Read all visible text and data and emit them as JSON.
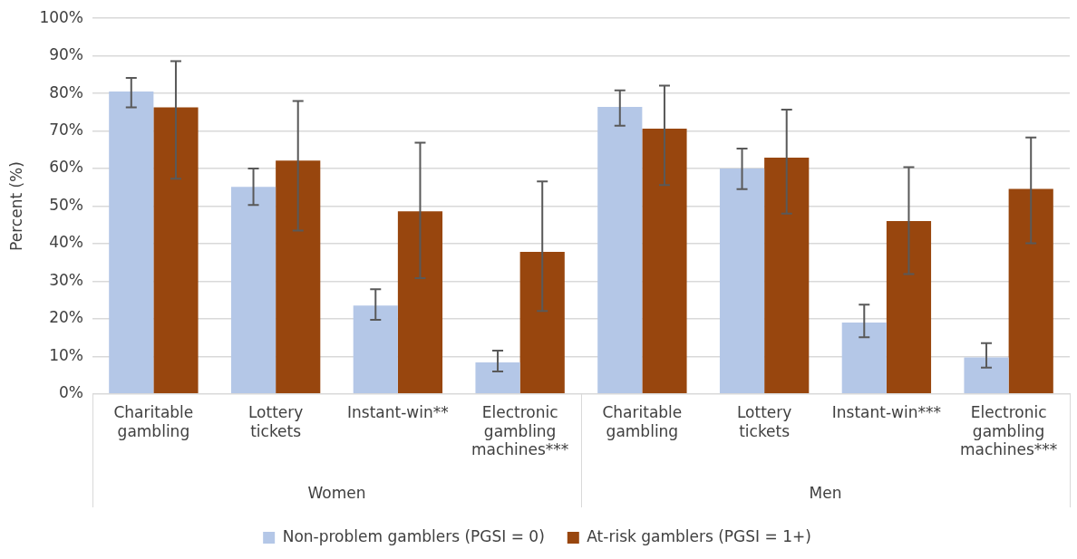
{
  "chart_data": {
    "type": "bar",
    "ylabel": "Percent (%)",
    "categories": [
      "Charitable gambling",
      "Lottery tickets",
      "Instant-win**",
      "Electronic gambling machines***",
      "Charitable gambling",
      "Lottery tickets",
      "Instant-win***",
      "Electronic gambling machines***"
    ],
    "series": [
      {
        "name": "Non-problem gamblers (PGSI = 0)",
        "color": "#b4c7e7",
        "values": [
          80.5,
          55.1,
          23.5,
          8.4,
          76.4,
          60.0,
          19.0,
          9.7
        ],
        "errors": [
          [
            76.3,
            84.1
          ],
          [
            50.3,
            60.0
          ],
          [
            19.7,
            27.9
          ],
          [
            6.0,
            11.5
          ],
          [
            71.4,
            80.8
          ],
          [
            54.5,
            65.3
          ],
          [
            15.1,
            23.8
          ],
          [
            7.0,
            13.5
          ]
        ]
      },
      {
        "name": "At-risk gamblers (PGSI = 1+)",
        "color": "#98460e",
        "values": [
          76.3,
          62.1,
          48.6,
          37.8,
          70.6,
          62.9,
          46.0,
          54.6
        ],
        "errors": [
          [
            57.3,
            88.6
          ],
          [
            43.5,
            78.0
          ],
          [
            30.8,
            66.9
          ],
          [
            22.1,
            56.6
          ],
          [
            55.6,
            82.1
          ],
          [
            48.0,
            75.7
          ],
          [
            31.9,
            60.4
          ],
          [
            40.1,
            68.3
          ]
        ]
      }
    ],
    "ylim": [
      0,
      100
    ],
    "yticks": [
      {
        "value": 0,
        "label": "0%"
      },
      {
        "value": 10,
        "label": "10%"
      },
      {
        "value": 20,
        "label": "20%"
      },
      {
        "value": 30,
        "label": "30%"
      },
      {
        "value": 40,
        "label": "40%"
      },
      {
        "value": 50,
        "label": "50%"
      },
      {
        "value": 60,
        "label": "60%"
      },
      {
        "value": 70,
        "label": "70%"
      },
      {
        "value": 80,
        "label": "80%"
      },
      {
        "value": 90,
        "label": "90%"
      },
      {
        "value": 100,
        "label": "100%"
      }
    ],
    "annotations": [
      "Women",
      "Men"
    ],
    "grid": "y",
    "legend": "bottom"
  }
}
